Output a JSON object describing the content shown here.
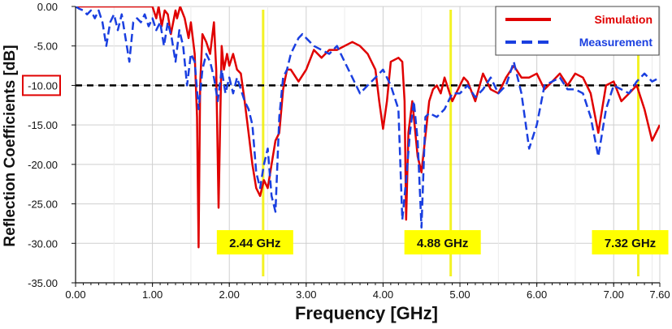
{
  "chart_data": {
    "type": "line",
    "title": "",
    "xlabel": "Frequency [GHz]",
    "ylabel": "Reflection Coefficients [dB]",
    "xlim": [
      0,
      7.6
    ],
    "ylim": [
      -35,
      0
    ],
    "grid": true,
    "legend_position": "top-right",
    "x_ticks": [
      "0.00",
      "1.00",
      "2.00",
      "3.00",
      "4.00",
      "5.00",
      "6.00",
      "7.00",
      "7.60"
    ],
    "x_tick_values": [
      0,
      1,
      2,
      3,
      4,
      5,
      6,
      7,
      7.6
    ],
    "y_ticks": [
      "0.00",
      "-5.00",
      "-10.00",
      "-15.00",
      "-20.00",
      "-25.00",
      "-30.00",
      "-35.00"
    ],
    "y_tick_values": [
      0,
      -5,
      -10,
      -15,
      -20,
      -25,
      -30,
      -35
    ],
    "threshold": {
      "value": -10,
      "label": "-10.00",
      "color": "#000000"
    },
    "markers": [
      {
        "x": 2.44,
        "label": "2.44 GHz"
      },
      {
        "x": 4.88,
        "label": "4.88 GHz"
      },
      {
        "x": 7.32,
        "label": "7.32 GHz"
      }
    ],
    "series": [
      {
        "name": "Simulation",
        "color": "#e00000",
        "style": "solid",
        "x": [
          0,
          0.5,
          1.0,
          1.05,
          1.08,
          1.12,
          1.16,
          1.2,
          1.24,
          1.3,
          1.32,
          1.36,
          1.42,
          1.47,
          1.5,
          1.55,
          1.58,
          1.6,
          1.62,
          1.65,
          1.7,
          1.75,
          1.8,
          1.83,
          1.86,
          1.88,
          1.9,
          1.93,
          1.97,
          2.0,
          2.05,
          2.1,
          2.15,
          2.2,
          2.25,
          2.3,
          2.35,
          2.4,
          2.45,
          2.5,
          2.55,
          2.6,
          2.65,
          2.7,
          2.75,
          2.8,
          2.9,
          3.0,
          3.1,
          3.2,
          3.3,
          3.4,
          3.5,
          3.6,
          3.7,
          3.8,
          3.9,
          3.95,
          4.0,
          4.05,
          4.1,
          4.2,
          4.25,
          4.28,
          4.3,
          4.33,
          4.38,
          4.45,
          4.5,
          4.6,
          4.65,
          4.7,
          4.75,
          4.8,
          4.9,
          5.0,
          5.05,
          5.1,
          5.2,
          5.3,
          5.4,
          5.5,
          5.6,
          5.7,
          5.8,
          5.9,
          6.0,
          6.1,
          6.2,
          6.3,
          6.4,
          6.5,
          6.6,
          6.7,
          6.8,
          6.85,
          6.9,
          7.0,
          7.1,
          7.2,
          7.3,
          7.4,
          7.5,
          7.6
        ],
        "y": [
          0,
          0,
          0,
          -1.5,
          0,
          -2.5,
          -0.5,
          -1,
          -3.5,
          -0.5,
          -1.5,
          0,
          -1.5,
          -4,
          -2,
          -6,
          -14,
          -30.5,
          -10,
          -3.5,
          -4.5,
          -6,
          -2,
          -8,
          -25.5,
          -15,
          -5,
          -8,
          -6,
          -7.5,
          -6,
          -8,
          -8.5,
          -12,
          -16,
          -20,
          -23,
          -24,
          -22,
          -23,
          -20,
          -17,
          -16,
          -10.5,
          -8,
          -8,
          -9.5,
          -8,
          -5.5,
          -6.5,
          -5.5,
          -5.5,
          -5,
          -4.5,
          -5,
          -6,
          -8,
          -12,
          -15.5,
          -12,
          -7,
          -6.5,
          -7,
          -12,
          -27,
          -16,
          -12,
          -19,
          -21,
          -12,
          -10.5,
          -10,
          -11,
          -9,
          -12,
          -10,
          -9,
          -9.5,
          -12,
          -8.5,
          -10.5,
          -11,
          -9,
          -7.5,
          -9,
          -9,
          -8.5,
          -10.5,
          -9.5,
          -8.5,
          -10,
          -8.5,
          -9,
          -11,
          -16,
          -13,
          -10,
          -9.5,
          -12,
          -11,
          -10,
          -13,
          -17,
          -15
        ]
      },
      {
        "name": "Measurement",
        "color": "#1a3fe0",
        "style": "dashed",
        "x": [
          0,
          0.05,
          0.1,
          0.15,
          0.2,
          0.25,
          0.3,
          0.35,
          0.4,
          0.45,
          0.5,
          0.55,
          0.6,
          0.65,
          0.7,
          0.75,
          0.8,
          0.85,
          0.9,
          0.95,
          1.0,
          1.05,
          1.1,
          1.15,
          1.2,
          1.25,
          1.3,
          1.35,
          1.4,
          1.45,
          1.5,
          1.55,
          1.6,
          1.65,
          1.7,
          1.75,
          1.8,
          1.85,
          1.9,
          1.95,
          2.0,
          2.05,
          2.1,
          2.15,
          2.2,
          2.25,
          2.3,
          2.35,
          2.4,
          2.45,
          2.5,
          2.55,
          2.6,
          2.65,
          2.7,
          2.75,
          2.8,
          2.85,
          2.9,
          2.95,
          3.0,
          3.1,
          3.2,
          3.3,
          3.4,
          3.5,
          3.6,
          3.7,
          3.8,
          3.9,
          4.0,
          4.1,
          4.2,
          4.25,
          4.3,
          4.35,
          4.4,
          4.45,
          4.5,
          4.55,
          4.6,
          4.7,
          4.8,
          4.9,
          5.0,
          5.1,
          5.2,
          5.3,
          5.4,
          5.5,
          5.6,
          5.7,
          5.8,
          5.9,
          6.0,
          6.1,
          6.2,
          6.3,
          6.4,
          6.5,
          6.6,
          6.7,
          6.8,
          6.9,
          7.0,
          7.1,
          7.2,
          7.3,
          7.4,
          7.5,
          7.6
        ],
        "y": [
          0,
          -0.3,
          -0.5,
          -1,
          -0.5,
          -1.5,
          -0.5,
          -2,
          -5,
          -2,
          -1,
          -3,
          -1,
          -4,
          -7,
          -2,
          -1.5,
          -2,
          -1,
          -2.5,
          -1.5,
          -3,
          -2,
          -5,
          -2,
          -4,
          -7,
          -3,
          -5,
          -10,
          -6,
          -7,
          -13,
          -8,
          -6,
          -7,
          -9,
          -12,
          -8,
          -11,
          -9,
          -11,
          -9,
          -10.5,
          -12,
          -13,
          -15,
          -21,
          -23,
          -20,
          -18,
          -24,
          -26,
          -14,
          -9,
          -8,
          -6,
          -5,
          -4,
          -3.5,
          -4,
          -5,
          -5.5,
          -6,
          -5,
          -7,
          -9,
          -11,
          -10,
          -9,
          -8,
          -10,
          -13,
          -27,
          -22,
          -16,
          -12,
          -17,
          -28,
          -14,
          -13.5,
          -14,
          -13,
          -11,
          -11,
          -10,
          -11.5,
          -10.5,
          -9,
          -11,
          -10,
          -7,
          -11,
          -18,
          -15,
          -10,
          -9.5,
          -9,
          -10.5,
          -10.5,
          -11,
          -14,
          -19,
          -13,
          -10,
          -10.5,
          -11,
          -9.5,
          -8.5,
          -9.5,
          -9
        ]
      }
    ]
  }
}
